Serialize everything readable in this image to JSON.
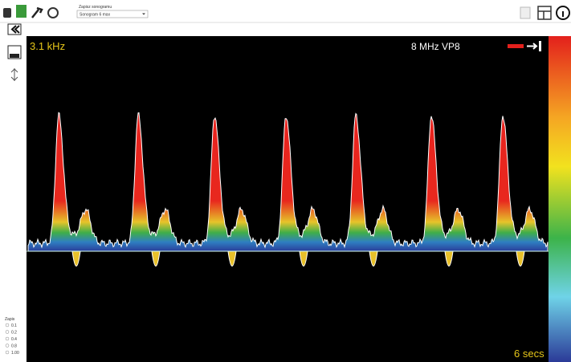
{
  "toolbar": {
    "dropdown_label": "Zapisz sonogramu",
    "dropdown_value": "Sonogram 6 max"
  },
  "sidebar": {
    "speed_label": "Zapis",
    "speed_options": [
      "0.1",
      "0.2",
      "0.4",
      "0.8",
      "1.00"
    ]
  },
  "sonogram": {
    "frequency": "3.1 kHz",
    "probe": "8 MHz VP8",
    "time": "6 secs"
  }
}
